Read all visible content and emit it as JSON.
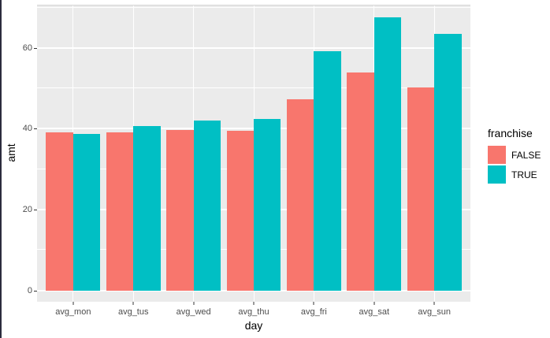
{
  "window": {
    "background": "#ffffff",
    "left_border_color": "#2b2b3d"
  },
  "chart_data": {
    "type": "bar",
    "title": "",
    "xlabel": "day",
    "ylabel": "amt",
    "categories": [
      "avg_mon",
      "avg_tus",
      "avg_wed",
      "avg_thu",
      "avg_fri",
      "avg_sat",
      "avg_sun"
    ],
    "series": [
      {
        "name": "FALSE",
        "color": "#F8766D",
        "values": [
          39.1,
          39.1,
          39.7,
          39.6,
          47.4,
          54.0,
          50.2
        ]
      },
      {
        "name": "TRUE",
        "color": "#00BFC4",
        "values": [
          38.7,
          40.7,
          42.1,
          42.5,
          59.2,
          67.5,
          63.4
        ]
      }
    ],
    "legend_title": "franchise",
    "legend_position": "right",
    "legend_labels": [
      "FALSE",
      "TRUE"
    ],
    "y_major_ticks": [
      0,
      20,
      40,
      60
    ],
    "y_minor_gridlines": [
      10,
      30,
      50,
      70
    ],
    "ylim_panel": [
      -2.8,
      70.7
    ],
    "grid": "on",
    "panel_background": "#EBEBEB",
    "gridline_color": "#FFFFFF",
    "axis_text_color": "#4d4d4d",
    "axis_title_color": "#000000",
    "bar_group_width_fraction": 0.9,
    "category_axis_padding": 0.6
  }
}
